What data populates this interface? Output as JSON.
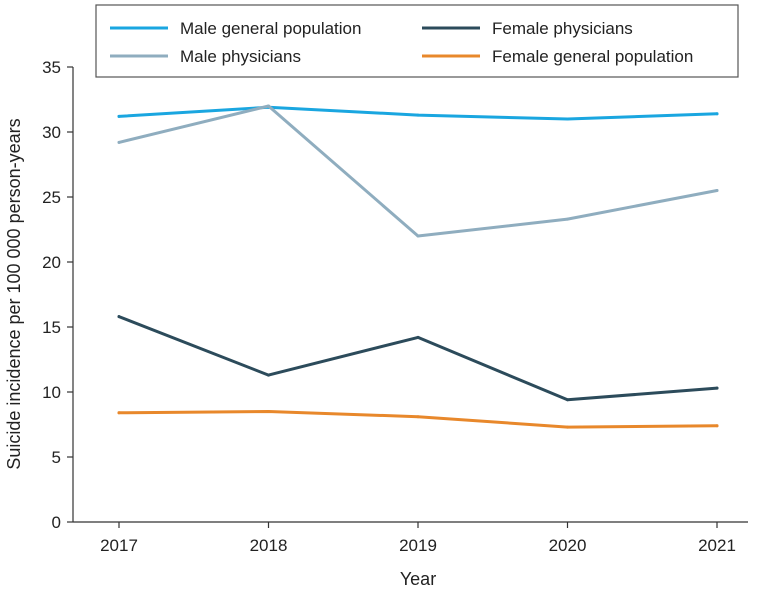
{
  "chart_data": {
    "type": "line",
    "title": "",
    "xlabel": "Year",
    "ylabel": "Suicide incidence per 100 000 person-years",
    "categories": [
      "2017",
      "2018",
      "2019",
      "2020",
      "2021"
    ],
    "ylim": [
      0,
      35
    ],
    "yticks": [
      "0",
      "5",
      "10",
      "15",
      "20",
      "25",
      "30",
      "35"
    ],
    "grid": false,
    "legend_position": "top",
    "series": [
      {
        "name": "Male general population",
        "color": "#1aa6e0",
        "values": [
          31.2,
          31.9,
          31.3,
          31.0,
          31.4
        ]
      },
      {
        "name": "Male physicians",
        "color": "#8fadbf",
        "values": [
          29.2,
          32.0,
          22.0,
          23.3,
          25.5
        ]
      },
      {
        "name": "Female physicians",
        "color": "#2c4b5b",
        "values": [
          15.8,
          11.3,
          14.2,
          9.4,
          10.3
        ]
      },
      {
        "name": "Female general population",
        "color": "#e8882b",
        "values": [
          8.4,
          8.5,
          8.1,
          7.3,
          7.4
        ]
      }
    ]
  }
}
